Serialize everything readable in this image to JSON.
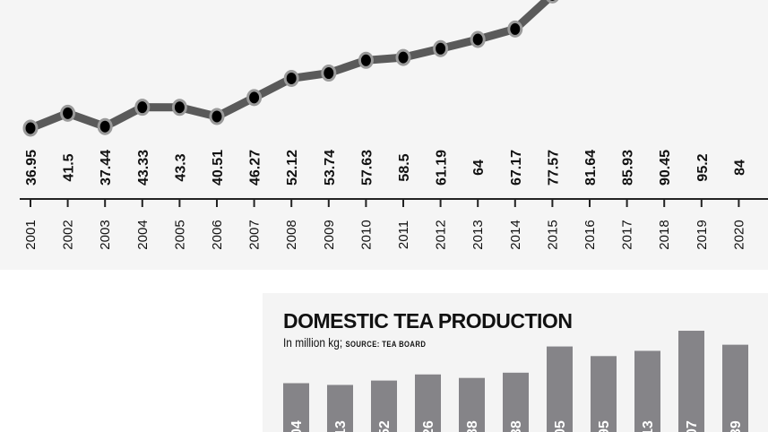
{
  "chart_data": [
    {
      "type": "line",
      "x": [
        "2001",
        "2002",
        "2003",
        "2004",
        "2005",
        "2006",
        "2007",
        "2008",
        "2009",
        "2010",
        "2011",
        "2012",
        "2013",
        "2014",
        "2015",
        "2016",
        "2017",
        "2018",
        "2019",
        "2020"
      ],
      "values": [
        36.95,
        41.5,
        37.44,
        43.33,
        43.3,
        40.51,
        46.27,
        52.12,
        53.74,
        57.63,
        58.5,
        61.19,
        64,
        67.17,
        77.57,
        81.64,
        85.93,
        90.45,
        95.2,
        84
      ],
      "value_labels": [
        "36.95",
        "41.5",
        "37.44",
        "43.33",
        "43.3",
        "40.51",
        "46.27",
        "52.12",
        "53.74",
        "57.63",
        "58.5",
        "61.19",
        "64",
        "67.17",
        "77.57",
        "81.64",
        "85.93",
        "90.45",
        "95.2",
        "84"
      ],
      "grid": false,
      "colors": {
        "line": "#5a5a5a",
        "marker": "#000000",
        "marker_edge": "#9a9a9a",
        "background": "#f5f5f5"
      }
    },
    {
      "type": "bar",
      "title": "DOMESTIC TEA PRODUCTION",
      "subtitle": "In million kg;",
      "source": "SOURCE: TEA BOARD",
      "visible_label_fragments": [
        "04",
        "13",
        "52",
        "26",
        "88",
        "38",
        "05",
        "95",
        "13",
        "07",
        "39"
      ],
      "relative_heights": [
        0.61,
        0.59,
        0.64,
        0.71,
        0.67,
        0.73,
        1.03,
        0.92,
        0.98,
        1.21,
        1.05
      ],
      "colors": {
        "bar": "#858488",
        "background": "#f4f4f4"
      }
    }
  ]
}
